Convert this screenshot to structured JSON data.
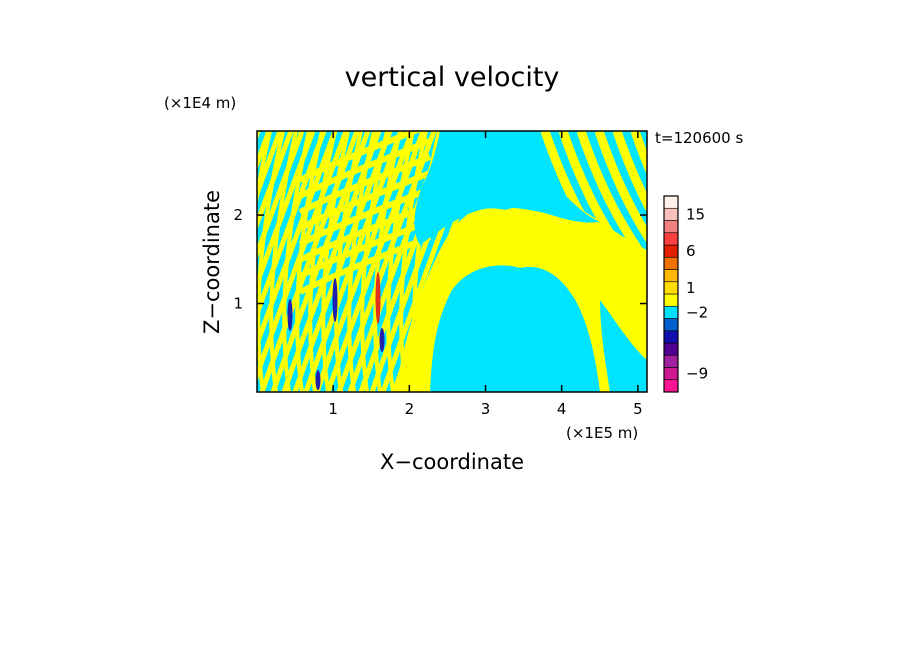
{
  "chart_data": {
    "type": "heatmap",
    "title": "vertical velocity",
    "xlabel": "X−coordinate",
    "ylabel": "Z−coordinate",
    "x_unit": "(×1E5 m)",
    "y_unit": "(×1E4 m)",
    "time_label": "t=120600 s",
    "xlim": [
      0,
      5.12
    ],
    "ylim": [
      0,
      2.95
    ],
    "x_ticks": [
      {
        "value": 1,
        "label": "1"
      },
      {
        "value": 2,
        "label": "2"
      },
      {
        "value": 3,
        "label": "3"
      },
      {
        "value": 4,
        "label": "4"
      },
      {
        "value": 5,
        "label": "5"
      }
    ],
    "y_ticks": [
      {
        "value": 1,
        "label": "1"
      },
      {
        "value": 2,
        "label": "2"
      }
    ],
    "colorbar": {
      "levels": [
        {
          "color": "#ff1493"
        },
        {
          "color": "#d01890"
        },
        {
          "color": "#a020a0"
        },
        {
          "color": "#500090"
        },
        {
          "color": "#1010b0"
        },
        {
          "color": "#0060d0"
        },
        {
          "color": "#00e0ff"
        },
        {
          "color": "#ffff00"
        },
        {
          "color": "#ffdd00"
        },
        {
          "color": "#ffb800"
        },
        {
          "color": "#f07000"
        },
        {
          "color": "#e02000"
        },
        {
          "color": "#ff4040"
        },
        {
          "color": "#f08080"
        },
        {
          "color": "#f8c0b8"
        },
        {
          "color": "#fff0ec"
        }
      ],
      "labels": [
        {
          "value": "15",
          "at": 14
        },
        {
          "value": "6",
          "at": 11
        },
        {
          "value": "1",
          "at": 8
        },
        {
          "value": "−2",
          "at": 6
        },
        {
          "value": "−9",
          "at": 1
        }
      ]
    },
    "colors": {
      "positive": "#ffff00",
      "negative": "#00e5ff",
      "strong_negative": "#2020b0",
      "strong_positive": "#e03020"
    }
  }
}
